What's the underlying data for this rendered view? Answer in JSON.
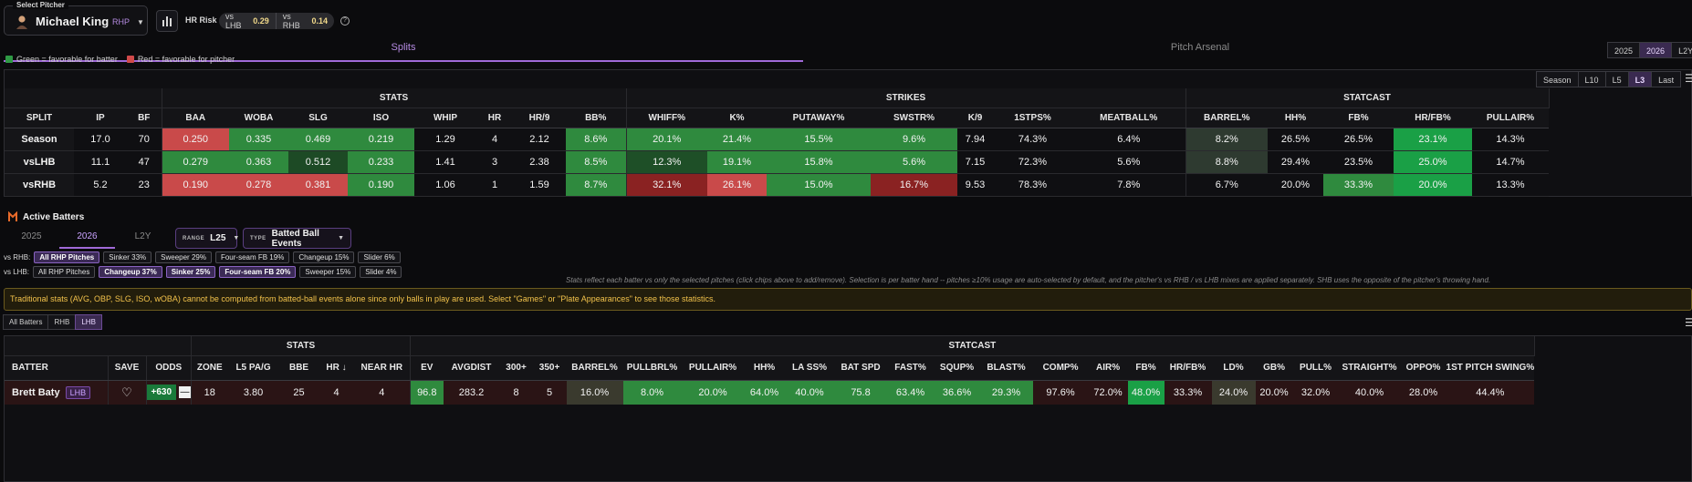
{
  "header": {
    "select_label": "Select Pitcher",
    "pitcher_name": "Michael King",
    "pitcher_hand": "RHP",
    "hr_risk_label": "HR Risk",
    "hr_risk": [
      {
        "label": "vs LHB",
        "value": "0.29"
      },
      {
        "label": "vs RHB",
        "value": "0.14"
      }
    ]
  },
  "tabs": {
    "splits": "Splits",
    "arsenal": "Pitch Arsenal",
    "years": [
      "2025",
      "2026",
      "L2Y"
    ],
    "active_year": "2026"
  },
  "legend": {
    "green": "Green = favorable for batter",
    "red": "Red = favorable for pitcher"
  },
  "range_buttons": [
    "Season",
    "L10",
    "L5",
    "L3",
    "Last"
  ],
  "active_range": "L3",
  "splits_table": {
    "groups": [
      "STATS",
      "STRIKES",
      "STATCAST"
    ],
    "columns": [
      "SPLIT",
      "IP",
      "BF",
      "BAA",
      "WOBA",
      "SLG",
      "ISO",
      "WHIP",
      "HR",
      "HR/9",
      "BB%",
      "WHIFF%",
      "K%",
      "PUTAWAY%",
      "SWSTR%",
      "K/9",
      "1STPS%",
      "MEATBALL%",
      "BARREL%",
      "HH%",
      "FB%",
      "HR/FB%",
      "PULLAIR%"
    ],
    "rows": [
      {
        "cells": [
          "Season",
          "17.0",
          "70",
          "0.250",
          "0.335",
          "0.469",
          "0.219",
          "1.29",
          "4",
          "2.12",
          "8.6%",
          "20.1%",
          "21.4%",
          "15.5%",
          "9.6%",
          "7.94",
          "74.3%",
          "6.4%",
          "8.2%",
          "26.5%",
          "26.5%",
          "23.1%",
          "14.3%"
        ]
      },
      {
        "cells": [
          "vsLHB",
          "11.1",
          "47",
          "0.279",
          "0.363",
          "0.512",
          "0.233",
          "1.41",
          "3",
          "2.38",
          "8.5%",
          "12.3%",
          "19.1%",
          "15.8%",
          "5.6%",
          "7.15",
          "72.3%",
          "5.6%",
          "8.8%",
          "29.4%",
          "23.5%",
          "25.0%",
          "14.7%"
        ]
      },
      {
        "cells": [
          "vsRHB",
          "5.2",
          "23",
          "0.190",
          "0.278",
          "0.381",
          "0.190",
          "1.06",
          "1",
          "1.59",
          "8.7%",
          "32.1%",
          "26.1%",
          "15.0%",
          "16.7%",
          "9.53",
          "78.3%",
          "7.8%",
          "6.7%",
          "20.0%",
          "33.3%",
          "20.0%",
          "13.3%"
        ]
      }
    ],
    "colors": [
      [
        "",
        "",
        "",
        "#c94a4a",
        "#2f8a3e",
        "#2f8a3e",
        "#2f8a3e",
        "",
        "",
        "",
        "#2f8a3e",
        "#2f8a3e",
        "#2f8a3e",
        "#2f8a3e",
        "#2f8a3e",
        "",
        "",
        "",
        "#2e3a30",
        "",
        "",
        "#1aa046",
        ""
      ],
      [
        "",
        "",
        "",
        "#2f8a3e",
        "#2f8a3e",
        "#1d4a25",
        "#2f8a3e",
        "",
        "",
        "",
        "#2f8a3e",
        "#1e4f27",
        "#2f8a3e",
        "#2f8a3e",
        "#2f8a3e",
        "",
        "",
        "",
        "#2e3a30",
        "",
        "",
        "#1aa046",
        ""
      ],
      [
        "",
        "",
        "",
        "#c94a4a",
        "#c94a4a",
        "#c94a4a",
        "#2f8a3e",
        "",
        "",
        "",
        "#2f8a3e",
        "#8a2222",
        "#c94a4a",
        "#2f8a3e",
        "#8a2222",
        "",
        "",
        "",
        "",
        "",
        "#2f8a3e",
        "#1aa046",
        ""
      ]
    ]
  },
  "active_batters": {
    "title": "Active Batters",
    "years": [
      "2025",
      "2026",
      "L2Y"
    ],
    "active_year": "2026",
    "range_caption": "RANGE",
    "range_value": "L25",
    "type_caption": "TYPE",
    "type_value": "Batted Ball Events",
    "rhb_label": "vs RHB:",
    "rhb_chips": [
      {
        "label": "All RHP Pitches",
        "on": true
      },
      {
        "label": "Sinker 33%",
        "on": false
      },
      {
        "label": "Sweeper 29%",
        "on": false
      },
      {
        "label": "Four-seam FB 19%",
        "on": false
      },
      {
        "label": "Changeup 15%",
        "on": false
      },
      {
        "label": "Slider 6%",
        "on": false
      }
    ],
    "lhb_label": "vs LHB:",
    "lhb_chips": [
      {
        "label": "All RHP Pitches",
        "on": false
      },
      {
        "label": "Changeup 37%",
        "on": true
      },
      {
        "label": "Sinker 25%",
        "on": true
      },
      {
        "label": "Four-seam FB 20%",
        "on": true
      },
      {
        "label": "Sweeper 15%",
        "on": false
      },
      {
        "label": "Slider 4%",
        "on": false
      }
    ],
    "note": "Stats reflect each batter vs only the selected pitches (click chips above to add/remove). Selection is per batter hand -- pitches ≥10% usage are auto-selected by default, and the pitcher's vs RHB / vs LHB mixes are applied separately. SHB uses the opposite of the pitcher's throwing hand.",
    "warning": "Traditional stats (AVG, OBP, SLG, ISO, wOBA) cannot be computed from batted-ball events alone since only balls in play are used. Select \"Games\" or \"Plate Appearances\" to see those statistics.",
    "filters": [
      "All Batters",
      "RHB",
      "LHB"
    ],
    "active_filter": "LHB"
  },
  "batters_table": {
    "groups": [
      "STATS",
      "STATCAST"
    ],
    "columns": [
      "BATTER",
      "SAVE",
      "ODDS",
      "ZONE",
      "L5 PA/G",
      "BBE",
      "HR ↓",
      "NEAR HR",
      "EV",
      "AVGDIST",
      "300+",
      "350+",
      "BARREL%",
      "PULLBRL%",
      "PULLAIR%",
      "HH%",
      "LA SS%",
      "BAT SPD",
      "FAST%",
      "SQUP%",
      "BLAST%",
      "COMP%",
      "AIR%",
      "FB%",
      "HR/FB%",
      "LD%",
      "GB%",
      "PULL%",
      "STRAIGHT%",
      "OPPO%",
      "1ST PITCH SWING%"
    ],
    "row": {
      "name": "Brett Baty",
      "hand": "LHB",
      "odds": "+630",
      "odds_dash": "—",
      "cells": [
        "18",
        "3.80",
        "25",
        "4",
        "4",
        "96.8",
        "283.2",
        "8",
        "5",
        "16.0%",
        "8.0%",
        "20.0%",
        "64.0%",
        "40.0%",
        "75.8",
        "63.4%",
        "36.6%",
        "29.3%",
        "97.6%",
        "72.0%",
        "48.0%",
        "33.3%",
        "24.0%",
        "20.0%",
        "32.0%",
        "40.0%",
        "28.0%",
        "44.4%"
      ],
      "colors": [
        "",
        "",
        "",
        "",
        "",
        "#2f8a3e",
        "",
        "",
        "",
        "#3a3a2e",
        "#2f8a3e",
        "#2f8a3e",
        "#2f8a3e",
        "#2f8a3e",
        "#2f8a3e",
        "#2f8a3e",
        "#2f8a3e",
        "#2f8a3e",
        "",
        "",
        "#1aa046",
        "",
        "#3a3a2e",
        "",
        "",
        "",
        "",
        ""
      ]
    }
  }
}
